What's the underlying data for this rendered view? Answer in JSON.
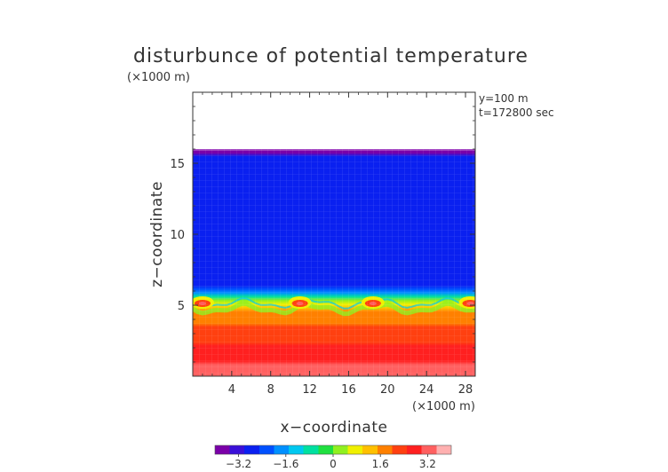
{
  "chart_data": {
    "type": "heatmap",
    "title": "disturbunce of potential temperature",
    "y_unit_label": "(×1000 m)",
    "x_unit_label": "(×1000 m)",
    "xlabel": "x−coordinate",
    "ylabel": "z−coordinate",
    "annotations": [
      "y=100 m",
      "t=172800 sec"
    ],
    "x_ticks": [
      4,
      8,
      12,
      16,
      20,
      24,
      28
    ],
    "x_tick_labels": [
      "4",
      "8",
      "12",
      "16",
      "20",
      "24",
      "28"
    ],
    "y_ticks": [
      5,
      10,
      15
    ],
    "y_tick_labels": [
      "5",
      "10",
      "15"
    ],
    "xlim": [
      0,
      29
    ],
    "ylim": [
      0,
      20
    ],
    "colorbar": {
      "range": [
        -4,
        4
      ],
      "ticks": [
        -3.2,
        -1.6,
        0,
        1.6,
        3.2
      ],
      "tick_labels": [
        "−3.2",
        "−1.6",
        "0",
        "1.6",
        "3.2"
      ],
      "colors": [
        "#7a00a8",
        "#3a10d8",
        "#0a20f0",
        "#0050ff",
        "#0090ff",
        "#00c8f0",
        "#00e0a0",
        "#20e040",
        "#90f020",
        "#f0f000",
        "#ffc000",
        "#ff8000",
        "#ff4010",
        "#ff2020",
        "#ff6060",
        "#ffb0b0"
      ]
    },
    "field_top_km": 16,
    "interface_km": 5,
    "lower_value_range": [
      1.6,
      3.4
    ],
    "upper_value": -2.6,
    "warm_bulges_x_km": [
      1,
      11,
      18.5,
      28.5
    ]
  }
}
